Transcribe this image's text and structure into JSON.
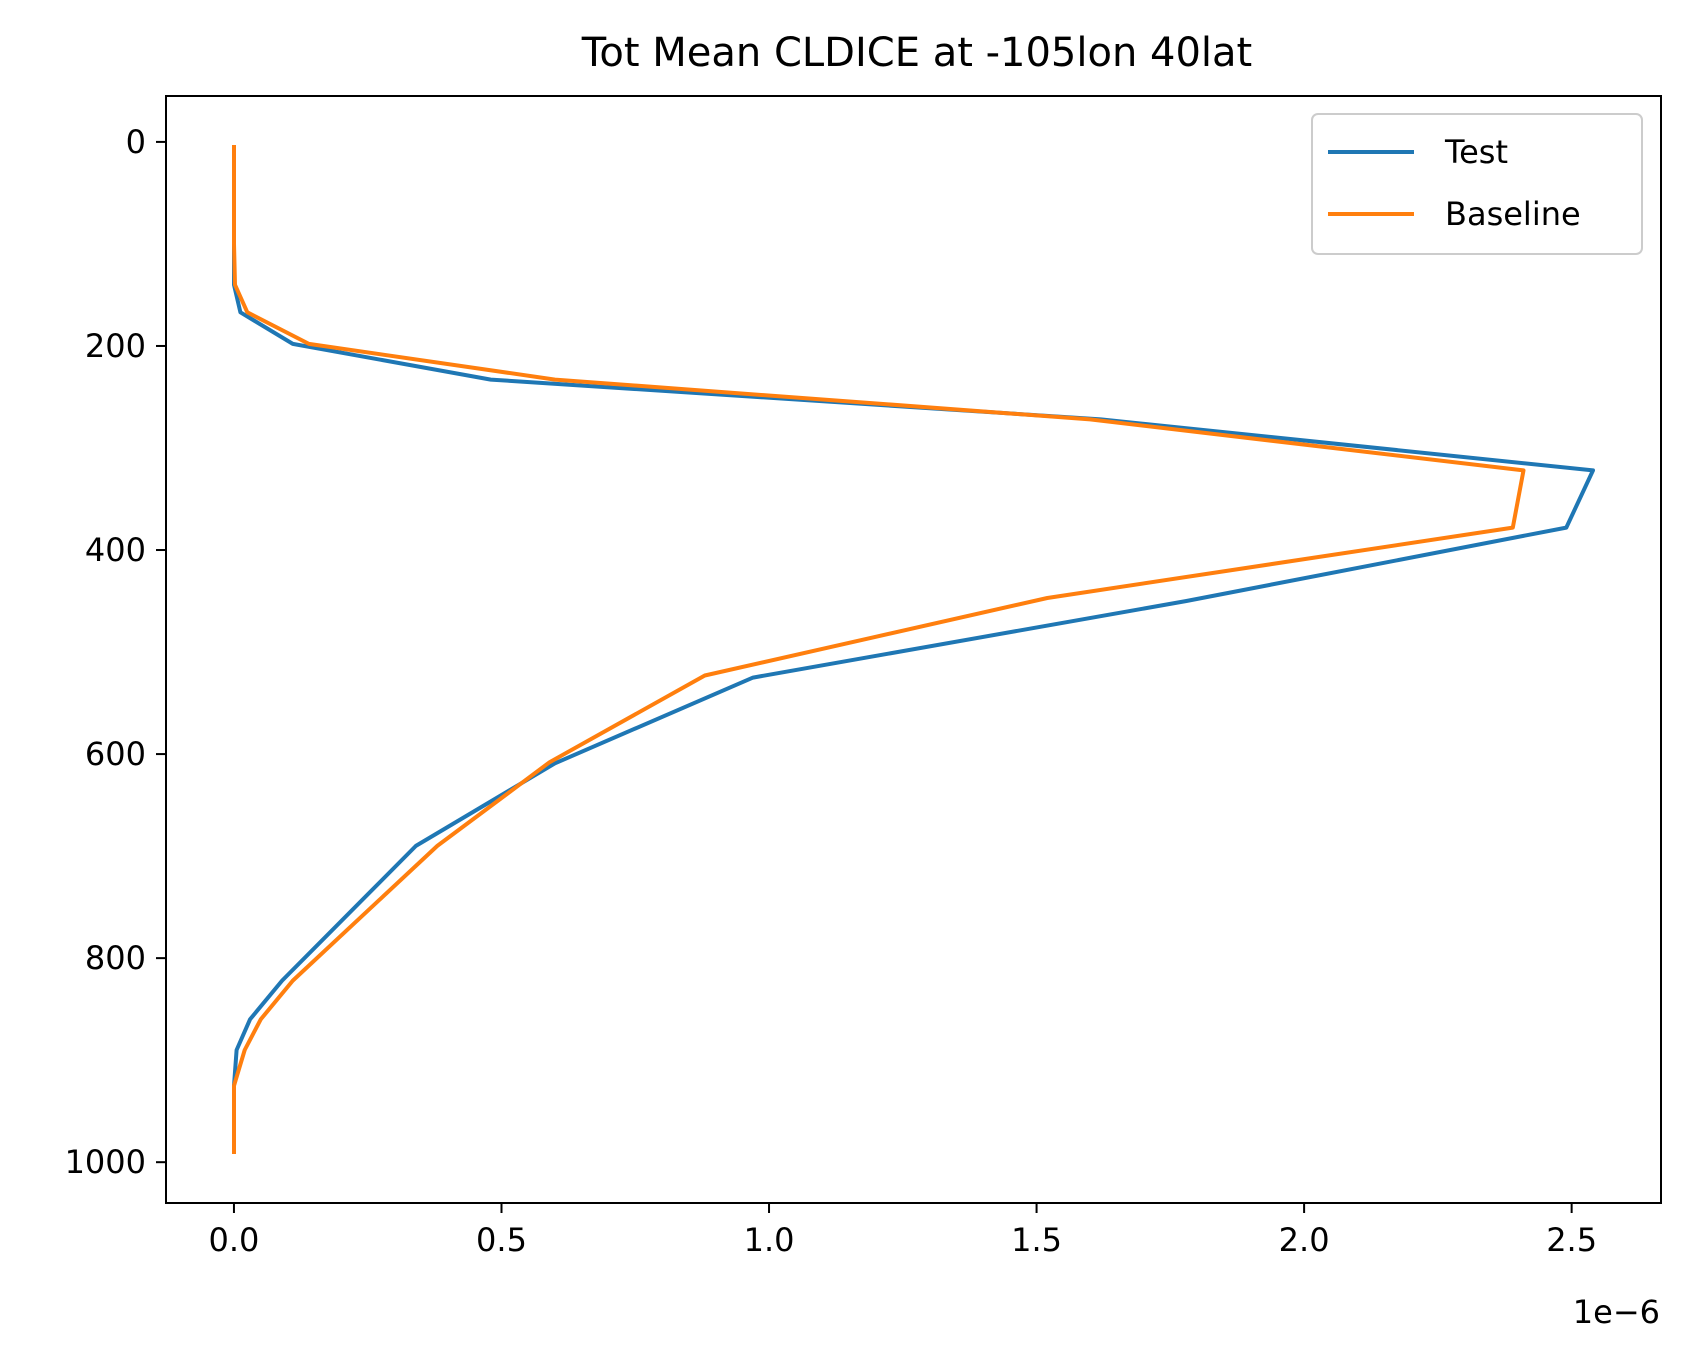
{
  "chart_data": {
    "type": "line",
    "title": "Tot Mean CLDICE at -105lon 40lat",
    "xlabel": "",
    "ylabel": "",
    "x_offset_label": "1e−6",
    "xlim": [
      -0.127,
      2.667
    ],
    "ylim": [
      1040,
      -45
    ],
    "x_ticks": [
      0.0,
      0.5,
      1.0,
      1.5,
      2.0,
      2.5
    ],
    "x_tick_labels": [
      "0.0",
      "0.5",
      "1.0",
      "1.5",
      "2.0",
      "2.5"
    ],
    "y_ticks": [
      0,
      200,
      400,
      600,
      800,
      1000
    ],
    "y_tick_labels": [
      "0",
      "200",
      "400",
      "600",
      "800",
      "1000"
    ],
    "legend": {
      "placement": "upper-right",
      "entries": [
        "Test",
        "Baseline"
      ]
    },
    "grid": false,
    "series": [
      {
        "name": "Test",
        "color": "#1f77b4",
        "x": [
          0.0,
          0.0,
          0.0,
          0.0,
          0.012,
          0.11,
          0.48,
          1.62,
          2.54,
          2.49,
          1.78,
          0.97,
          0.6,
          0.34,
          0.09,
          0.03,
          0.005,
          0.0,
          0.0,
          0.0
        ],
        "y": [
          3,
          50,
          100,
          140,
          167,
          198,
          233,
          272,
          322,
          378,
          450,
          525,
          609,
          690,
          822,
          860,
          890,
          925,
          960,
          992
        ]
      },
      {
        "name": "Baseline",
        "color": "#ff7f0e",
        "x": [
          0.0,
          0.0,
          0.0,
          0.002,
          0.025,
          0.14,
          0.6,
          1.6,
          2.41,
          2.39,
          1.52,
          0.88,
          0.59,
          0.38,
          0.11,
          0.05,
          0.02,
          0.0,
          0.0,
          0.0
        ],
        "y": [
          3,
          50,
          100,
          140,
          167,
          198,
          233,
          272,
          322,
          378,
          447,
          523,
          608,
          690,
          822,
          860,
          890,
          925,
          960,
          992
        ]
      }
    ]
  }
}
